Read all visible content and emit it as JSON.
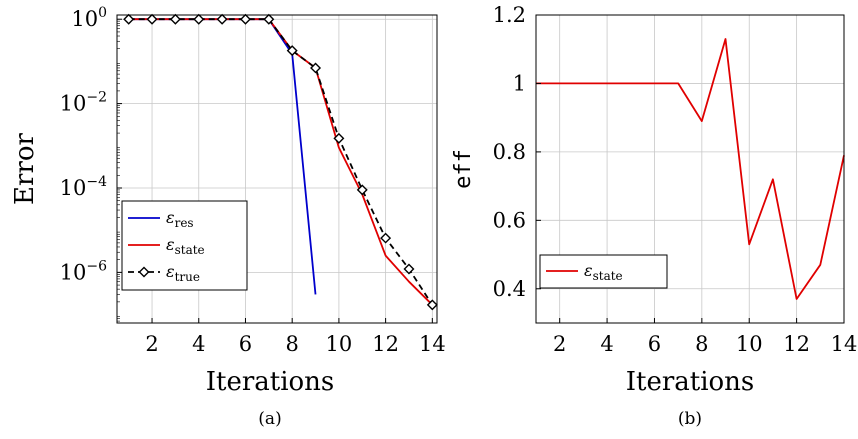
{
  "chart_data": [
    {
      "type": "line",
      "caption": "(a)",
      "xlabel": "Iterations",
      "ylabel": "Error",
      "yscale": "log",
      "xlim": [
        0.5,
        14.2
      ],
      "ylim_exp": [
        -7.2,
        0.1
      ],
      "xticks": [
        2,
        4,
        6,
        8,
        10,
        12,
        14
      ],
      "yticks": [
        {
          "exp": 0,
          "base": "10",
          "sup": "0"
        },
        {
          "exp": -2,
          "base": "10",
          "sup": "−2"
        },
        {
          "exp": -4,
          "base": "10",
          "sup": "−4"
        },
        {
          "exp": -6,
          "base": "10",
          "sup": "−6"
        }
      ],
      "grid": true,
      "legend_position": "bottom-left",
      "series": [
        {
          "name": "ε",
          "sub": "res",
          "color": "#0000cc",
          "dash": "",
          "marker": "none",
          "x": [
            1,
            2,
            3,
            4,
            5,
            6,
            7,
            8,
            9
          ],
          "y": [
            1,
            1,
            1,
            1,
            1,
            1,
            1,
            0.15,
            3e-07
          ]
        },
        {
          "name": "ε",
          "sub": "state",
          "color": "#e00000",
          "dash": "",
          "marker": "none",
          "x": [
            1,
            2,
            3,
            4,
            5,
            6,
            7,
            8,
            9,
            10,
            11,
            12,
            13,
            14
          ],
          "y": [
            1,
            1,
            1,
            1,
            1,
            1,
            1,
            0.18,
            0.07,
            0.0009,
            7e-05,
            2.5e-06,
            6e-07,
            1.7e-07
          ]
        },
        {
          "name": "ε",
          "sub": "true",
          "color": "#000000",
          "dash": "6,4",
          "marker": "diamond",
          "x": [
            1,
            2,
            3,
            4,
            5,
            6,
            7,
            8,
            9,
            10,
            11,
            12,
            13,
            14
          ],
          "y": [
            1,
            1,
            1,
            1,
            1,
            1,
            1,
            0.18,
            0.07,
            0.0015,
            9e-05,
            6.5e-06,
            1.2e-06,
            1.7e-07
          ]
        }
      ]
    },
    {
      "type": "line",
      "caption": "(b)",
      "xlabel": "Iterations",
      "ylabel": "eff",
      "xlim": [
        1,
        14
      ],
      "ylim": [
        0.3,
        1.2
      ],
      "xticks": [
        2,
        4,
        6,
        8,
        10,
        12,
        14
      ],
      "yticks": [
        0.4,
        0.6,
        0.8,
        1,
        1.2
      ],
      "ytick_labels": [
        "0.4",
        "0.6",
        "0.8",
        "1",
        "1.2"
      ],
      "grid": true,
      "legend_position": "bottom-left",
      "series": [
        {
          "name": "ε",
          "sub": "state",
          "color": "#e00000",
          "x": [
            1,
            2,
            3,
            4,
            5,
            6,
            7,
            8,
            9,
            10,
            11,
            12,
            13,
            14
          ],
          "y": [
            1,
            1,
            1,
            1,
            1,
            1,
            1,
            0.89,
            1.13,
            0.53,
            0.72,
            0.37,
            0.47,
            0.79
          ]
        }
      ]
    }
  ]
}
